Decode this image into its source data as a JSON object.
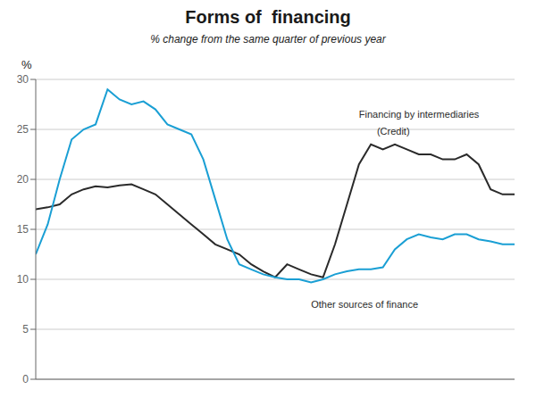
{
  "chart_data": {
    "type": "line",
    "title": "Forms of  financing",
    "subtitle": "% change from the same quarter of previous year",
    "ylabel": "%",
    "x": [
      0,
      1,
      2,
      3,
      4,
      5,
      6,
      7,
      8,
      9,
      10,
      11,
      12,
      13,
      14,
      15,
      16,
      17,
      18,
      19,
      20,
      21,
      22,
      23,
      24,
      25,
      26,
      27,
      28,
      29,
      30,
      31,
      32,
      33,
      34,
      35,
      36,
      37,
      38,
      39,
      40
    ],
    "series": [
      {
        "color": "#2a2a2a",
        "values": [
          17.0,
          17.2,
          17.5,
          18.5,
          19.0,
          19.3,
          19.2,
          19.4,
          19.5,
          19.0,
          18.5,
          17.5,
          16.5,
          15.5,
          14.5,
          13.5,
          13.0,
          12.5,
          11.5,
          10.8,
          10.2,
          11.5,
          11.0,
          10.5,
          10.2,
          13.5,
          17.5,
          21.5,
          23.5,
          23.0,
          23.5,
          23.0,
          22.5,
          22.5,
          22.0,
          22.0,
          22.5,
          21.5,
          19.0,
          18.5,
          18.5
        ]
      },
      {
        "color": "#1a9fd4",
        "values": [
          12.5,
          15.5,
          20.0,
          24.0,
          25.0,
          25.5,
          29.0,
          28.0,
          27.5,
          27.8,
          27.0,
          25.5,
          25.0,
          24.5,
          22.0,
          18.0,
          14.0,
          11.5,
          11.0,
          10.5,
          10.2,
          10.0,
          10.0,
          9.7,
          10.0,
          10.5,
          10.8,
          11.0,
          11.0,
          11.2,
          13.0,
          14.0,
          14.5,
          14.2,
          14.0,
          14.5,
          14.5,
          14.0,
          13.8,
          13.5,
          13.5
        ]
      }
    ],
    "xlim": [
      0,
      40
    ],
    "xticks": [],
    "ylim": [
      0,
      30
    ],
    "yticks": [
      0,
      5,
      10,
      15,
      20,
      25,
      30
    ],
    "grid": true,
    "tick_labels": "y",
    "annotations": [
      {
        "text": "Financing by intermediaries",
        "x": 27,
        "y": 26.5
      },
      {
        "text": "(Credit)",
        "x": 28.5,
        "y": 24.8
      },
      {
        "text": "Other sources of finance",
        "x": 23,
        "y": 7.5
      }
    ]
  }
}
